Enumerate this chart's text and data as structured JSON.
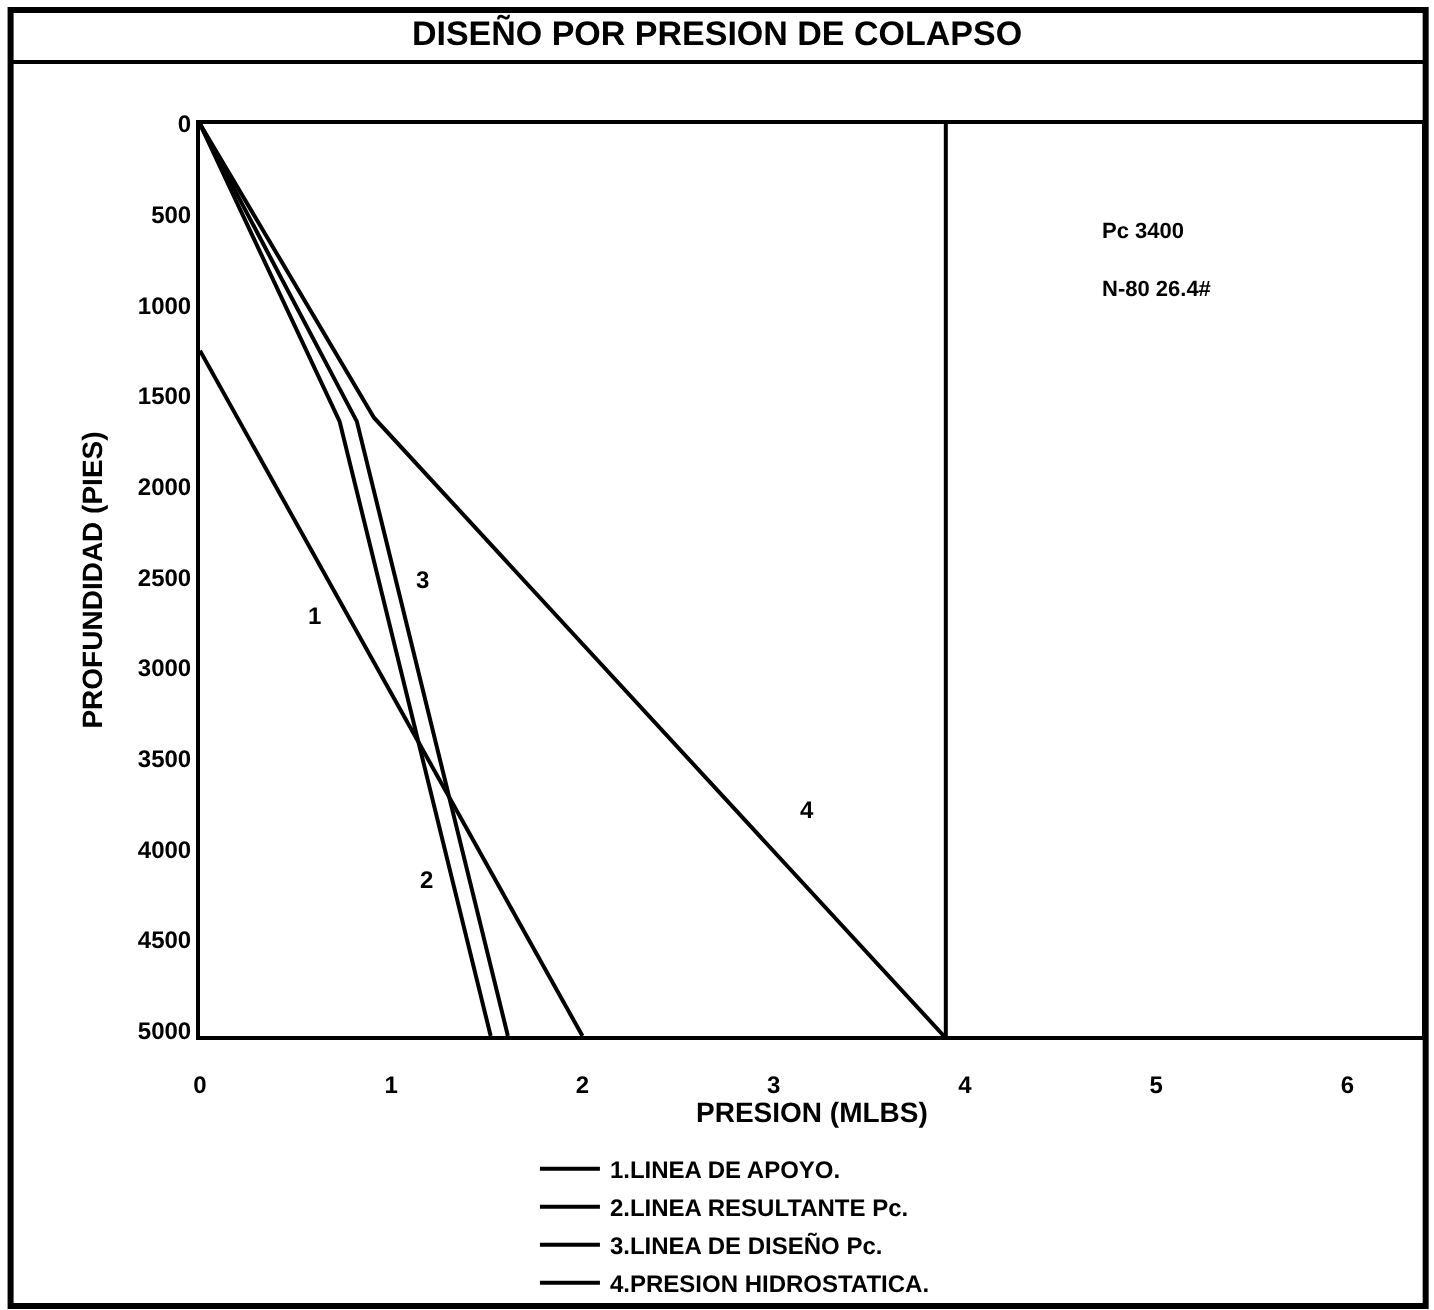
{
  "chart_data": {
    "type": "line",
    "title": "DISEÑO POR PRESION DE COLAPSO",
    "xlabel": "PRESION (MLBS)",
    "ylabel": "PROFUNDIDAD (PIES)",
    "xlim": [
      0,
      6.39
    ],
    "xticks": [
      0,
      1,
      2,
      3,
      4,
      5,
      6
    ],
    "ylim": [
      5030,
      0
    ],
    "yticks": [
      0,
      500,
      1000,
      1500,
      2000,
      2500,
      3000,
      3500,
      4000,
      4500,
      5000
    ],
    "series": [
      {
        "name": "1.LINEA DE APOYO.",
        "color": "#000000",
        "x": [
          0,
          2.0
        ],
        "values": [
          1250,
          5030
        ]
      },
      {
        "name": "2.LINEA RESULTANTE Pc.",
        "color": "#000000",
        "x": [
          0,
          0.73,
          1.52
        ],
        "values": [
          0,
          1640,
          5030
        ]
      },
      {
        "name": "3.LINEA DE DISEÑO Pc.",
        "color": "#000000",
        "x": [
          0,
          0.82,
          1.61
        ],
        "values": [
          0,
          1640,
          5030
        ]
      },
      {
        "name": "4.PRESION HIDROSTATICA.",
        "color": "#000000",
        "x": [
          0,
          0.91,
          3.89
        ],
        "values": [
          0,
          1620,
          5030
        ]
      }
    ],
    "ref_lines": [
      {
        "axis": "x",
        "value": 3.9,
        "color": "#000000"
      }
    ],
    "annotations": [
      "1",
      "2",
      "3",
      "4",
      "Pc 3400",
      "N-80 26.4#"
    ],
    "grid": false,
    "legend": "bottom",
    "marker": "none",
    "line_style": "solid"
  }
}
